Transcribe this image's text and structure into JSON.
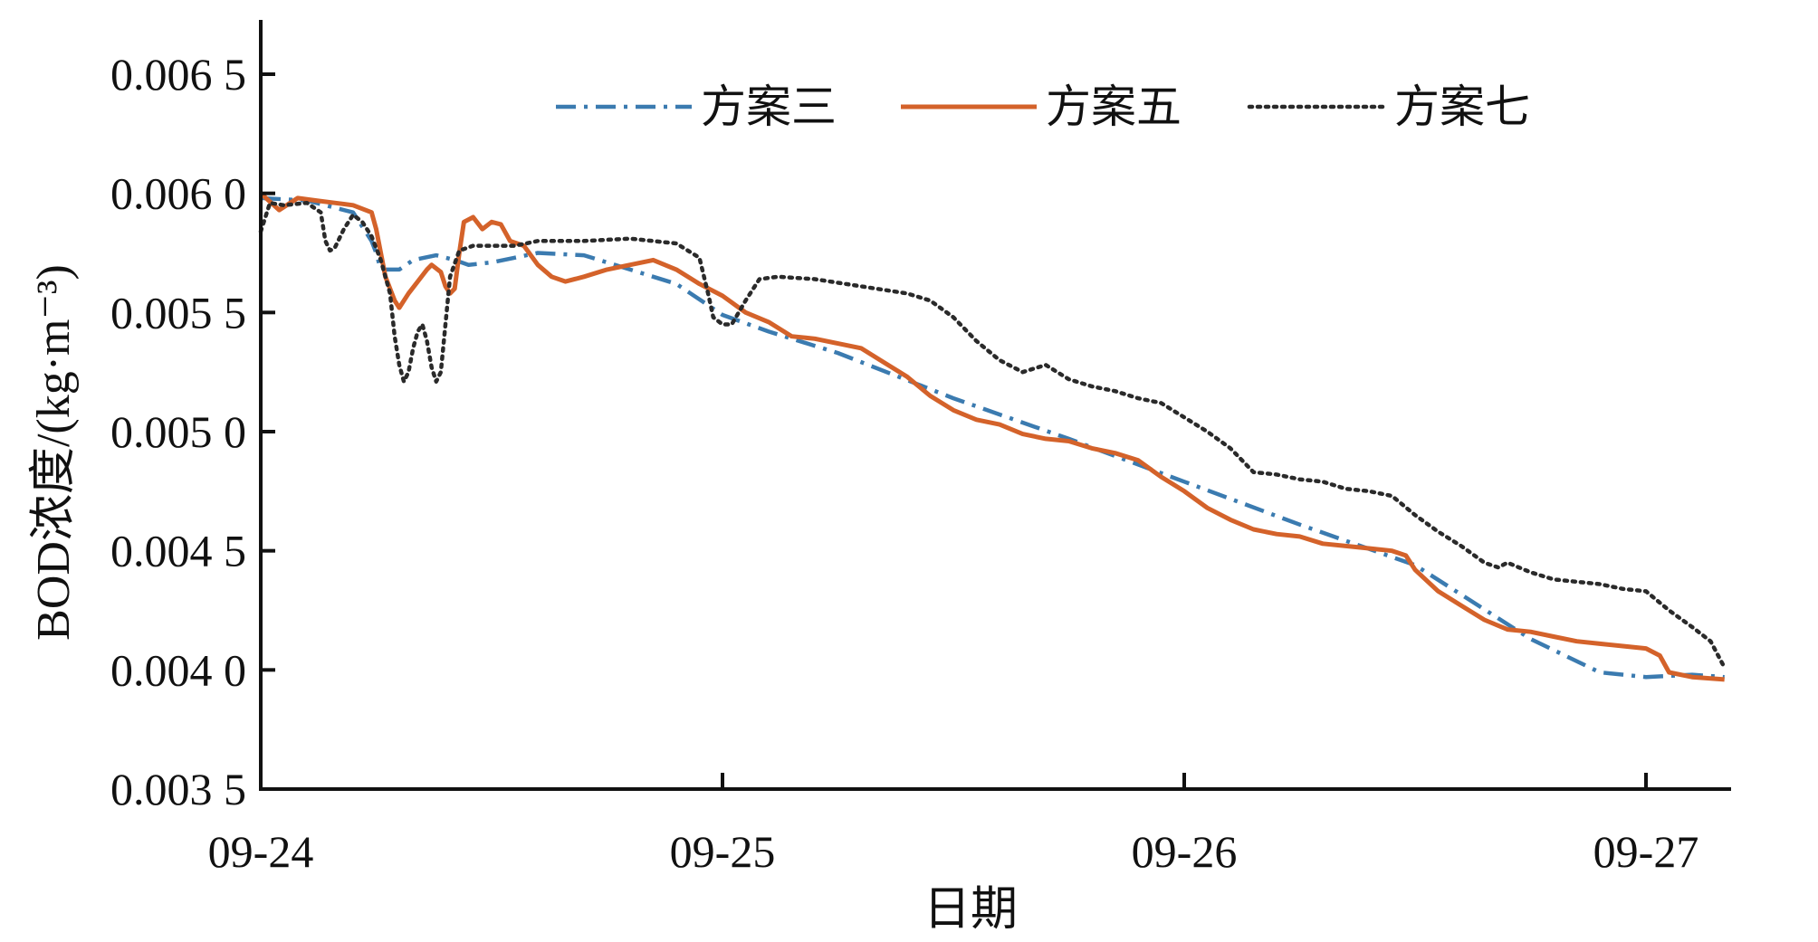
{
  "chart_data": {
    "type": "line",
    "xlabel": "日期",
    "ylabel": "BOD浓度/(kg·m⁻³)",
    "x_ticks": [
      "09-24",
      "09-25",
      "09-26",
      "09-27"
    ],
    "y_ticks": [
      "0.003 5",
      "0.004 0",
      "0.004 5",
      "0.005 0",
      "0.005 5",
      "0.006 0",
      "0.006 5"
    ],
    "x_unit": "days since 09-24 00:00",
    "xlim": [
      0,
      3.17
    ],
    "ylim": [
      0.0035,
      0.0067
    ],
    "legend_position": "top",
    "series": [
      {
        "name": "方案三",
        "color": "#3b7bb0",
        "dash": "dash-dot",
        "points": [
          [
            0.0,
            0.00598
          ],
          [
            0.1,
            0.00597
          ],
          [
            0.2,
            0.00592
          ],
          [
            0.24,
            0.0058
          ],
          [
            0.25,
            0.00575
          ],
          [
            0.26,
            0.00568
          ],
          [
            0.3,
            0.00568
          ],
          [
            0.33,
            0.00572
          ],
          [
            0.38,
            0.00574
          ],
          [
            0.42,
            0.00572
          ],
          [
            0.45,
            0.0057
          ],
          [
            0.5,
            0.00571
          ],
          [
            0.55,
            0.00573
          ],
          [
            0.6,
            0.00575
          ],
          [
            0.7,
            0.00574
          ],
          [
            0.8,
            0.00568
          ],
          [
            0.9,
            0.00562
          ],
          [
            1.0,
            0.00549
          ],
          [
            1.1,
            0.00542
          ],
          [
            1.25,
            0.00533
          ],
          [
            1.5,
            0.00514
          ],
          [
            1.75,
            0.00497
          ],
          [
            2.0,
            0.00479
          ],
          [
            2.25,
            0.00461
          ],
          [
            2.5,
            0.00444
          ],
          [
            2.75,
            0.00413
          ],
          [
            2.9,
            0.00399
          ],
          [
            3.0,
            0.00397
          ],
          [
            3.1,
            0.00398
          ],
          [
            3.17,
            0.00397
          ]
        ]
      },
      {
        "name": "方案五",
        "color": "#d4622a",
        "dash": "solid",
        "points": [
          [
            0.0,
            0.006
          ],
          [
            0.04,
            0.00593
          ],
          [
            0.08,
            0.00598
          ],
          [
            0.12,
            0.00597
          ],
          [
            0.16,
            0.00596
          ],
          [
            0.2,
            0.00595
          ],
          [
            0.24,
            0.00592
          ],
          [
            0.25,
            0.00585
          ],
          [
            0.27,
            0.00565
          ],
          [
            0.29,
            0.00555
          ],
          [
            0.3,
            0.00552
          ],
          [
            0.32,
            0.00558
          ],
          [
            0.34,
            0.00563
          ],
          [
            0.36,
            0.00568
          ],
          [
            0.37,
            0.0057
          ],
          [
            0.39,
            0.00567
          ],
          [
            0.4,
            0.00561
          ],
          [
            0.41,
            0.00558
          ],
          [
            0.42,
            0.0056
          ],
          [
            0.43,
            0.00575
          ],
          [
            0.44,
            0.00588
          ],
          [
            0.46,
            0.0059
          ],
          [
            0.48,
            0.00585
          ],
          [
            0.5,
            0.00588
          ],
          [
            0.52,
            0.00587
          ],
          [
            0.54,
            0.0058
          ],
          [
            0.57,
            0.00578
          ],
          [
            0.6,
            0.0057
          ],
          [
            0.63,
            0.00565
          ],
          [
            0.66,
            0.00563
          ],
          [
            0.7,
            0.00565
          ],
          [
            0.75,
            0.00568
          ],
          [
            0.8,
            0.0057
          ],
          [
            0.85,
            0.00572
          ],
          [
            0.9,
            0.00568
          ],
          [
            0.95,
            0.00562
          ],
          [
            1.0,
            0.00557
          ],
          [
            1.05,
            0.0055
          ],
          [
            1.1,
            0.00546
          ],
          [
            1.15,
            0.0054
          ],
          [
            1.2,
            0.00539
          ],
          [
            1.25,
            0.00537
          ],
          [
            1.3,
            0.00535
          ],
          [
            1.35,
            0.00529
          ],
          [
            1.4,
            0.00523
          ],
          [
            1.45,
            0.00515
          ],
          [
            1.5,
            0.00509
          ],
          [
            1.55,
            0.00505
          ],
          [
            1.6,
            0.00503
          ],
          [
            1.65,
            0.00499
          ],
          [
            1.7,
            0.00497
          ],
          [
            1.75,
            0.00496
          ],
          [
            1.8,
            0.00493
          ],
          [
            1.85,
            0.00491
          ],
          [
            1.9,
            0.00488
          ],
          [
            1.95,
            0.00481
          ],
          [
            2.0,
            0.00475
          ],
          [
            2.05,
            0.00468
          ],
          [
            2.1,
            0.00463
          ],
          [
            2.15,
            0.00459
          ],
          [
            2.2,
            0.00457
          ],
          [
            2.25,
            0.00456
          ],
          [
            2.3,
            0.00453
          ],
          [
            2.35,
            0.00452
          ],
          [
            2.4,
            0.00451
          ],
          [
            2.45,
            0.0045
          ],
          [
            2.48,
            0.00448
          ],
          [
            2.5,
            0.00442
          ],
          [
            2.55,
            0.00433
          ],
          [
            2.6,
            0.00427
          ],
          [
            2.65,
            0.00421
          ],
          [
            2.7,
            0.00417
          ],
          [
            2.75,
            0.00416
          ],
          [
            2.8,
            0.00414
          ],
          [
            2.85,
            0.00412
          ],
          [
            2.9,
            0.00411
          ],
          [
            2.95,
            0.0041
          ],
          [
            3.0,
            0.00409
          ],
          [
            3.03,
            0.00406
          ],
          [
            3.05,
            0.00399
          ],
          [
            3.1,
            0.00397
          ],
          [
            3.17,
            0.00396
          ]
        ]
      },
      {
        "name": "方案七",
        "color": "#2a2a2a",
        "dash": "dotted",
        "points": [
          [
            0.0,
            0.00584
          ],
          [
            0.02,
            0.00596
          ],
          [
            0.05,
            0.00595
          ],
          [
            0.1,
            0.00596
          ],
          [
            0.13,
            0.00592
          ],
          [
            0.14,
            0.0058
          ],
          [
            0.15,
            0.00576
          ],
          [
            0.16,
            0.00577
          ],
          [
            0.18,
            0.00585
          ],
          [
            0.2,
            0.00591
          ],
          [
            0.22,
            0.00588
          ],
          [
            0.24,
            0.00582
          ],
          [
            0.26,
            0.00572
          ],
          [
            0.28,
            0.00558
          ],
          [
            0.29,
            0.0054
          ],
          [
            0.3,
            0.00528
          ],
          [
            0.31,
            0.00521
          ],
          [
            0.32,
            0.00525
          ],
          [
            0.33,
            0.00535
          ],
          [
            0.34,
            0.00542
          ],
          [
            0.35,
            0.00545
          ],
          [
            0.36,
            0.00538
          ],
          [
            0.37,
            0.00527
          ],
          [
            0.38,
            0.00521
          ],
          [
            0.39,
            0.00525
          ],
          [
            0.4,
            0.00545
          ],
          [
            0.41,
            0.00565
          ],
          [
            0.43,
            0.00576
          ],
          [
            0.46,
            0.00578
          ],
          [
            0.5,
            0.00578
          ],
          [
            0.55,
            0.00578
          ],
          [
            0.6,
            0.0058
          ],
          [
            0.7,
            0.0058
          ],
          [
            0.8,
            0.00581
          ],
          [
            0.9,
            0.00579
          ],
          [
            0.95,
            0.00573
          ],
          [
            0.96,
            0.00565
          ],
          [
            0.97,
            0.00557
          ],
          [
            0.98,
            0.00548
          ],
          [
            1.0,
            0.00545
          ],
          [
            1.02,
            0.00545
          ],
          [
            1.05,
            0.00555
          ],
          [
            1.08,
            0.00564
          ],
          [
            1.12,
            0.00565
          ],
          [
            1.2,
            0.00564
          ],
          [
            1.3,
            0.00561
          ],
          [
            1.4,
            0.00558
          ],
          [
            1.45,
            0.00555
          ],
          [
            1.5,
            0.00548
          ],
          [
            1.55,
            0.00538
          ],
          [
            1.6,
            0.0053
          ],
          [
            1.65,
            0.00525
          ],
          [
            1.7,
            0.00528
          ],
          [
            1.75,
            0.00522
          ],
          [
            1.8,
            0.00519
          ],
          [
            1.85,
            0.00517
          ],
          [
            1.9,
            0.00514
          ],
          [
            1.95,
            0.00512
          ],
          [
            2.0,
            0.00506
          ],
          [
            2.05,
            0.005
          ],
          [
            2.1,
            0.00493
          ],
          [
            2.15,
            0.00483
          ],
          [
            2.2,
            0.00482
          ],
          [
            2.25,
            0.0048
          ],
          [
            2.3,
            0.00479
          ],
          [
            2.35,
            0.00476
          ],
          [
            2.4,
            0.00475
          ],
          [
            2.45,
            0.00473
          ],
          [
            2.5,
            0.00465
          ],
          [
            2.55,
            0.00458
          ],
          [
            2.6,
            0.00452
          ],
          [
            2.65,
            0.00445
          ],
          [
            2.68,
            0.00443
          ],
          [
            2.7,
            0.00445
          ],
          [
            2.75,
            0.00441
          ],
          [
            2.8,
            0.00438
          ],
          [
            2.85,
            0.00437
          ],
          [
            2.9,
            0.00436
          ],
          [
            2.95,
            0.00434
          ],
          [
            3.0,
            0.00433
          ],
          [
            3.05,
            0.00425
          ],
          [
            3.1,
            0.00418
          ],
          [
            3.14,
            0.00412
          ],
          [
            3.17,
            0.00401
          ]
        ]
      }
    ]
  }
}
